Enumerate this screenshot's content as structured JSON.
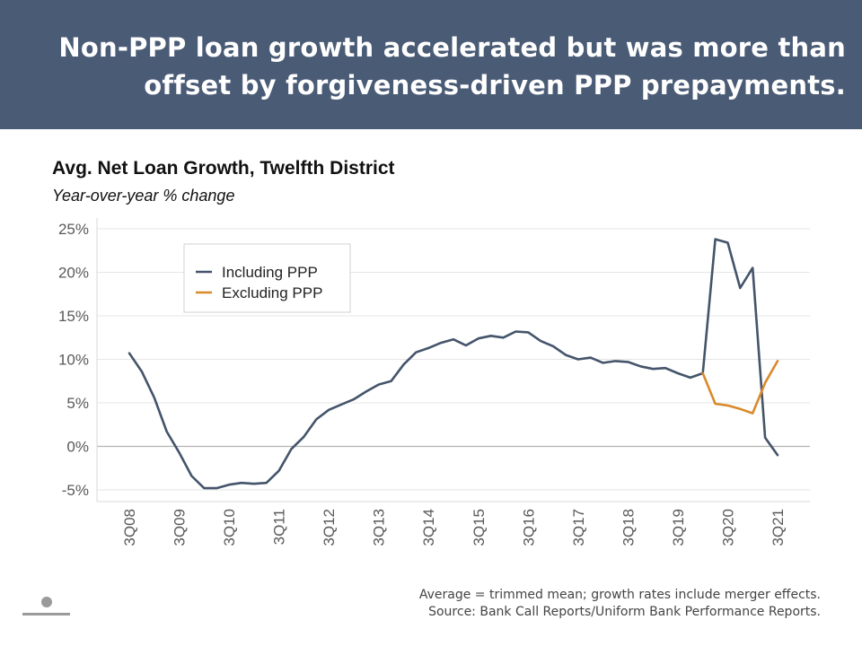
{
  "banner": {
    "title": "Non-PPP loan growth accelerated but was more than offset by forgiveness-driven PPP prepayments."
  },
  "footnote": {
    "line1": "Average = trimmed mean; growth rates include merger effects.",
    "line2": "Source: Bank Call Reports/Uniform Bank Performance Reports."
  },
  "chart_data": {
    "type": "line",
    "title": "Avg. Net Loan Growth, Twelfth District",
    "subtitle": "Year-over-year % change",
    "xlabel": "",
    "ylabel": "",
    "ylim": [
      -6,
      25
    ],
    "yticks": [
      25,
      20,
      15,
      10,
      5,
      0,
      -5
    ],
    "ytick_labels": [
      "25%",
      "20%",
      "15%",
      "10%",
      "5%",
      "0%",
      "-5%"
    ],
    "x_tick_labels": [
      "3Q08",
      "3Q09",
      "3Q10",
      "3Q11",
      "3Q12",
      "3Q13",
      "3Q14",
      "3Q15",
      "3Q16",
      "3Q17",
      "3Q18",
      "3Q19",
      "3Q20",
      "3Q21"
    ],
    "x_period_count": 53,
    "legend_position": "top-left",
    "grid": true,
    "series": [
      {
        "name": "Including PPP",
        "color": "#44546a",
        "start_index": 0,
        "values": [
          10.7,
          8.6,
          5.6,
          1.7,
          -0.7,
          -3.4,
          -4.8,
          -4.8,
          -4.4,
          -4.2,
          -4.3,
          -4.2,
          -2.8,
          -0.3,
          1.1,
          3.1,
          4.2,
          4.8,
          5.4,
          6.3,
          7.1,
          7.5,
          9.4,
          10.8,
          11.3,
          11.9,
          12.3,
          11.6,
          12.4,
          12.7,
          12.5,
          13.2,
          13.1,
          12.1,
          11.5,
          10.5,
          10.0,
          10.2,
          9.6,
          9.8,
          9.7,
          9.2,
          8.9,
          9.0,
          8.4,
          7.9,
          8.4,
          23.8,
          23.4,
          18.2,
          20.5,
          1.0,
          -1.0
        ]
      },
      {
        "name": "Excluding PPP",
        "color": "#d98a2b",
        "start_index": 46,
        "values": [
          8.4,
          4.9,
          4.7,
          4.3,
          3.8,
          7.3,
          9.8
        ]
      }
    ]
  }
}
